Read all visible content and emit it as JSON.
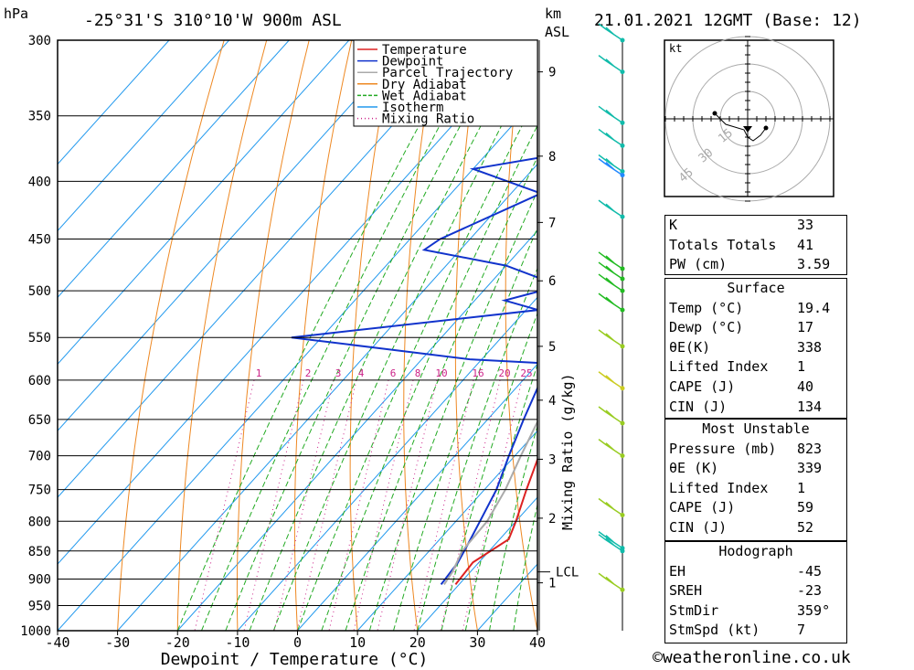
{
  "header": {
    "unit_left": "hPa",
    "location": "-25°31'S 310°10'W 900m ASL",
    "unit_km": "km",
    "unit_asl": "ASL",
    "datetime": "21.01.2021 12GMT (Base: 12)"
  },
  "chart_data": {
    "type": "line",
    "subtype": "skew-T log-P diagram",
    "xlabel": "Dewpoint / Temperature (°C)",
    "ylabel_right": "Mixing Ratio (g/kg)",
    "x_ticks": [
      -40,
      -30,
      -20,
      -10,
      0,
      10,
      20,
      30,
      40
    ],
    "pressure_levels": [
      300,
      350,
      400,
      450,
      500,
      550,
      600,
      650,
      700,
      750,
      800,
      850,
      900,
      950,
      1000
    ],
    "height_ticks": [
      {
        "km": "1",
        "p": 907
      },
      {
        "km": "2",
        "p": 795
      },
      {
        "km": "3",
        "p": 705
      },
      {
        "km": "4",
        "p": 625
      },
      {
        "km": "5",
        "p": 560
      },
      {
        "km": "6",
        "p": 490
      },
      {
        "km": "7",
        "p": 435
      },
      {
        "km": "8",
        "p": 380
      },
      {
        "km": "9",
        "p": 320
      }
    ],
    "lcl": {
      "label": "LCL",
      "p": 887
    },
    "mixing_ratio_labels": [
      "1",
      "2",
      "3",
      "4",
      "6",
      "8",
      "10",
      "16",
      "20",
      "25"
    ],
    "legend": [
      "Temperature",
      "Dewpoint",
      "Parcel Trajectory",
      "Dry Adiabat",
      "Wet Adiabat",
      "Isotherm",
      "Mixing Ratio"
    ],
    "series": [
      {
        "name": "Temperature",
        "color": "#dd2222",
        "points": [
          [
            910,
            19.4
          ],
          [
            870,
            19.0
          ],
          [
            830,
            21.5
          ],
          [
            800,
            20.0
          ],
          [
            750,
            17.0
          ],
          [
            700,
            14.0
          ],
          [
            650,
            10.5
          ],
          [
            600,
            7.0
          ],
          [
            580,
            6.0
          ],
          [
            550,
            4.5
          ],
          [
            520,
            2.0
          ],
          [
            500,
            0.5
          ],
          [
            480,
            -1.5
          ],
          [
            460,
            -3.5
          ],
          [
            440,
            -6.0
          ],
          [
            400,
            -11.5
          ],
          [
            360,
            -19.0
          ],
          [
            300,
            -29.5
          ]
        ]
      },
      {
        "name": "Dewpoint",
        "color": "#1133cc",
        "points": [
          [
            910,
            17.0
          ],
          [
            870,
            16.5
          ],
          [
            840,
            15.5
          ],
          [
            800,
            14.0
          ],
          [
            750,
            12.0
          ],
          [
            700,
            9.0
          ],
          [
            650,
            6.0
          ],
          [
            600,
            3.0
          ],
          [
            580,
            2.0
          ],
          [
            575,
            -12.0
          ],
          [
            550,
            -45.0
          ],
          [
            520,
            -8.0
          ],
          [
            510,
            -15.0
          ],
          [
            495,
            -8.0
          ],
          [
            475,
            -20.0
          ],
          [
            460,
            -36.0
          ],
          [
            450,
            -35.0
          ],
          [
            410,
            -25.0
          ],
          [
            390,
            -40.0
          ],
          [
            375,
            -24.0
          ],
          [
            360,
            -23.0
          ],
          [
            320,
            -30.0
          ],
          [
            300,
            -34.0
          ]
        ]
      },
      {
        "name": "Parcel Trajectory",
        "color": "#aaaaaa",
        "points": [
          [
            910,
            17.5
          ],
          [
            887,
            17.0
          ],
          [
            850,
            15.5
          ],
          [
            800,
            15.2
          ],
          [
            750,
            13.5
          ],
          [
            700,
            11.0
          ],
          [
            650,
            8.5
          ],
          [
            600,
            5.5
          ],
          [
            550,
            2.5
          ],
          [
            500,
            -1.5
          ],
          [
            450,
            -6.5
          ],
          [
            400,
            -12.0
          ],
          [
            350,
            -19.5
          ],
          [
            300,
            -30.0
          ]
        ]
      }
    ],
    "wind_profile": [
      {
        "p": 300,
        "color": "#11bbaa"
      },
      {
        "p": 320,
        "color": "#11bbaa"
      },
      {
        "p": 355,
        "color": "#11bbaa"
      },
      {
        "p": 372,
        "color": "#11bbaa"
      },
      {
        "p": 392,
        "color": "#11bbaa"
      },
      {
        "p": 395,
        "color": "#2288ff"
      },
      {
        "p": 430,
        "color": "#11bbaa"
      },
      {
        "p": 478,
        "color": "#22bb22"
      },
      {
        "p": 488,
        "color": "#22bb22"
      },
      {
        "p": 500,
        "color": "#22bb22"
      },
      {
        "p": 520,
        "color": "#22bb22"
      },
      {
        "p": 560,
        "color": "#99cc22"
      },
      {
        "p": 610,
        "color": "#cccc22"
      },
      {
        "p": 655,
        "color": "#99cc22"
      },
      {
        "p": 700,
        "color": "#99cc22"
      },
      {
        "p": 790,
        "color": "#99cc22"
      },
      {
        "p": 845,
        "color": "#11bbaa"
      },
      {
        "p": 850,
        "color": "#11bbaa"
      },
      {
        "p": 920,
        "color": "#99cc22"
      }
    ],
    "hodograph": {
      "unit": "kt",
      "ring_labels": [
        "15",
        "30",
        "45"
      ],
      "points": [
        [
          -18,
          3
        ],
        [
          -12,
          -3
        ],
        [
          -2,
          -6
        ],
        [
          0,
          -10
        ],
        [
          3,
          -12
        ],
        [
          7,
          -9
        ],
        [
          10,
          -5
        ]
      ]
    }
  },
  "indices": {
    "basic": [
      {
        "label": "K",
        "value": "33"
      },
      {
        "label": "Totals Totals",
        "value": "41"
      },
      {
        "label": "PW (cm)",
        "value": "3.59"
      }
    ],
    "surface": {
      "title": "Surface",
      "rows": [
        {
          "label": "Temp (°C)",
          "value": "19.4"
        },
        {
          "label": "Dewp (°C)",
          "value": "17"
        },
        {
          "label": "θE(K)",
          "value": "338"
        },
        {
          "label": "Lifted Index",
          "value": "1"
        },
        {
          "label": "CAPE (J)",
          "value": "40"
        },
        {
          "label": "CIN (J)",
          "value": "134"
        }
      ]
    },
    "most_unstable": {
      "title": "Most Unstable",
      "rows": [
        {
          "label": "Pressure (mb)",
          "value": "823"
        },
        {
          "label": "θE (K)",
          "value": "339"
        },
        {
          "label": "Lifted Index",
          "value": "1"
        },
        {
          "label": "CAPE (J)",
          "value": "59"
        },
        {
          "label": "CIN (J)",
          "value": "52"
        }
      ]
    },
    "hodograph": {
      "title": "Hodograph",
      "rows": [
        {
          "label": "EH",
          "value": "-45"
        },
        {
          "label": "SREH",
          "value": "-23"
        },
        {
          "label": "StmDir",
          "value": "359°"
        },
        {
          "label": "StmSpd (kt)",
          "value": "7"
        }
      ]
    }
  },
  "footer": {
    "credit": "©weatheronline.co.uk"
  }
}
